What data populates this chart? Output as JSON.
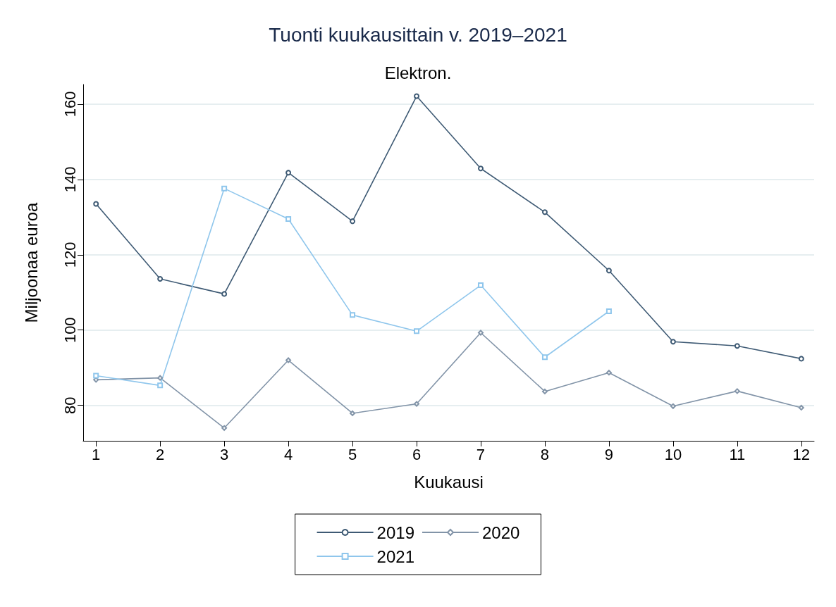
{
  "chart_data": {
    "type": "line",
    "title": "Tuonti kuukausittain v. 2019–2021",
    "subtitle": "Elektron.",
    "xlabel": "Kuukausi",
    "ylabel": "Miljoonaa euroa",
    "x": [
      1,
      2,
      3,
      4,
      5,
      6,
      7,
      8,
      9,
      10,
      11,
      12
    ],
    "xlim": [
      0.8,
      12.2
    ],
    "xticks": [
      1,
      2,
      3,
      4,
      5,
      6,
      7,
      8,
      9,
      10,
      11,
      12
    ],
    "ylim": [
      70.6,
      165.2
    ],
    "yticks": [
      80,
      100,
      120,
      140,
      160
    ],
    "grid": "y",
    "legend": "bottom",
    "line_style": "solid",
    "series": [
      {
        "name": "2019",
        "color": "#3e5a74",
        "marker": "circle",
        "values": [
          133.5,
          113.6,
          109.6,
          141.8,
          128.9,
          162.1,
          142.9,
          131.3,
          115.8,
          96.9,
          95.8,
          92.4
        ]
      },
      {
        "name": "2020",
        "color": "#8294a8",
        "marker": "diamond",
        "values": [
          86.8,
          87.3,
          74.0,
          92.0,
          77.9,
          80.4,
          99.3,
          83.7,
          88.7,
          79.8,
          83.8,
          79.4
        ]
      },
      {
        "name": "2021",
        "color": "#8fc6ec",
        "marker": "square",
        "values": [
          87.9,
          85.3,
          137.6,
          129.5,
          104.0,
          99.7,
          111.9,
          92.8,
          105.0,
          null,
          null,
          null
        ]
      }
    ]
  }
}
